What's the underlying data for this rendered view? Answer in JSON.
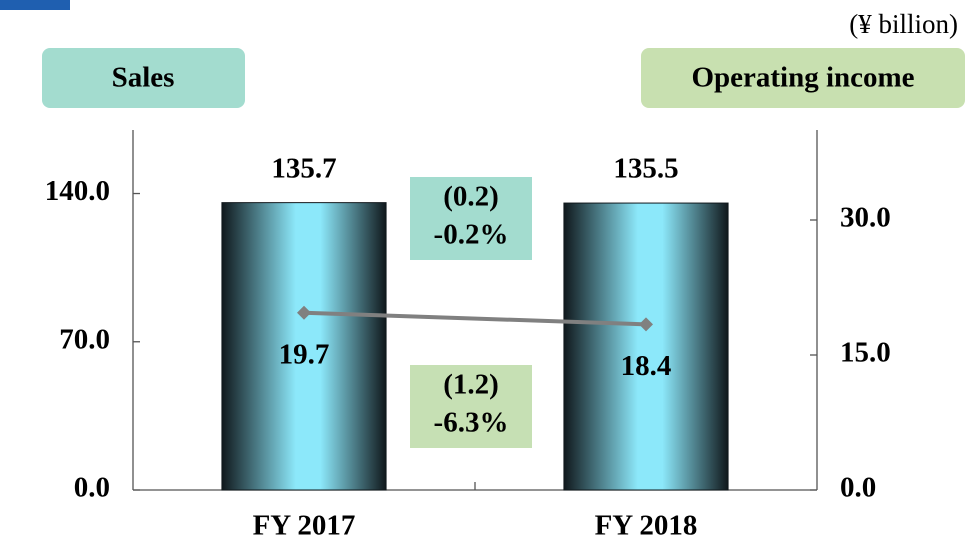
{
  "chart_data": {
    "type": "bar_line",
    "unit_label": "(¥ billion)",
    "categories": [
      "FY 2017",
      "FY 2018"
    ],
    "series": [
      {
        "name": "Sales",
        "color": "#8ce8fa",
        "values": [
          135.7,
          135.5
        ]
      },
      {
        "name": "Operating income",
        "color": "#808080",
        "axis": "y2",
        "values": [
          19.7,
          18.4
        ]
      }
    ],
    "ylim": [
      0,
      170
    ],
    "yticks": [
      {
        "value": 0,
        "label": "0.0"
      },
      {
        "value": 70,
        "label": "70.0"
      },
      {
        "value": 140,
        "label": "140.0"
      }
    ],
    "y2lim": [
      0,
      40
    ],
    "y2ticks": [
      {
        "value": 0,
        "label": "0.0"
      },
      {
        "value": 15,
        "label": "15.0"
      },
      {
        "value": 30,
        "label": "30.0"
      }
    ],
    "annotations": [
      [
        "(0.2)",
        "-0.2%"
      ],
      [
        "(1.2)",
        "-6.3%"
      ]
    ]
  }
}
